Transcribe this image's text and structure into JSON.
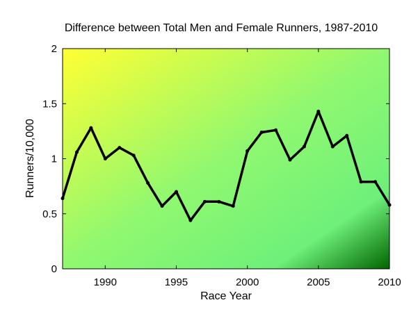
{
  "chart_data": {
    "type": "line",
    "title": "Difference between Total Men and Female Runners, 1987-2010",
    "xlabel": "Race Year",
    "ylabel": "Runners/10,000",
    "xlim": [
      1987,
      2010
    ],
    "ylim": [
      0,
      2
    ],
    "xticks": [
      "1990",
      "1995",
      "2000",
      "2005",
      "2010"
    ],
    "yticks": [
      "0",
      "0.5",
      "1",
      "1.5",
      "2"
    ],
    "grid": false,
    "background": "gradient: yellow (top-left) to light green to dark green (bottom-right)",
    "colors": {
      "line": "#000000",
      "gradient_start": "#ffff33",
      "gradient_mid": "#80ff80",
      "gradient_end": "#006400"
    },
    "series": [
      {
        "x": [
          1987,
          1988,
          1989,
          1990,
          1991,
          1992,
          1993,
          1994,
          1995,
          1996,
          1997,
          1998,
          1999,
          2000,
          2001,
          2002,
          2003,
          2004,
          2005,
          2006,
          2007,
          2008,
          2009,
          2010
        ],
        "y": [
          0.64,
          1.06,
          1.28,
          1.0,
          1.1,
          1.03,
          0.78,
          0.57,
          0.7,
          0.44,
          0.61,
          0.61,
          0.57,
          1.07,
          1.24,
          1.26,
          0.99,
          1.11,
          1.43,
          1.11,
          1.21,
          0.79,
          0.79,
          0.58
        ]
      }
    ]
  }
}
